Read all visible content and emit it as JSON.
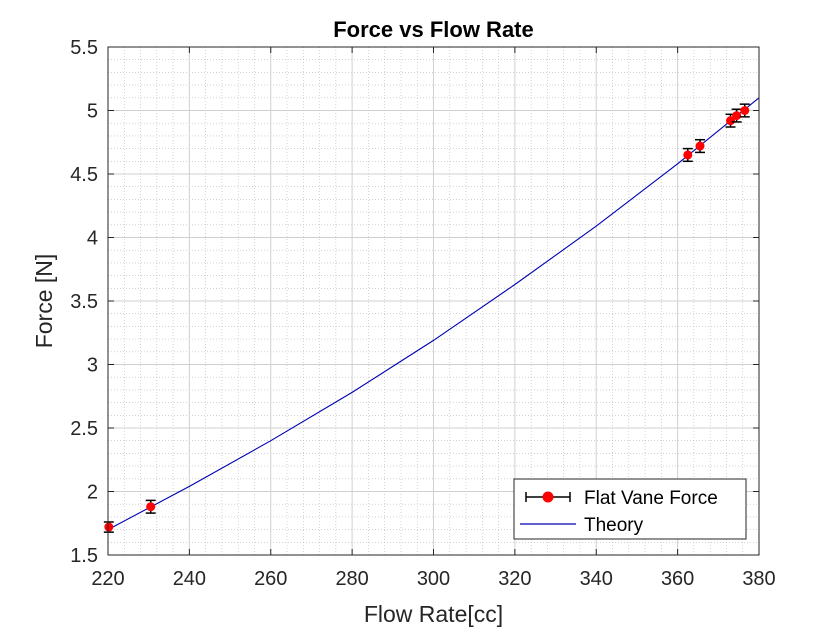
{
  "chart_data": {
    "type": "scatter",
    "title": "Force vs Flow Rate",
    "xlabel": "Flow Rate[cc]",
    "ylabel": "Force [N]",
    "xlim": [
      220,
      380
    ],
    "ylim": [
      1.5,
      5.5
    ],
    "x_ticks": [
      "220",
      "240",
      "260",
      "280",
      "300",
      "320",
      "340",
      "360",
      "380"
    ],
    "y_ticks": [
      "1.5",
      "2",
      "2.5",
      "3",
      "3.5",
      "4",
      "4.5",
      "5",
      "5.5"
    ],
    "grid": true,
    "minor_grid": true,
    "legend_position": "bottom-right",
    "series": [
      {
        "name": "Flat Vane Force",
        "kind": "errorbar",
        "marker_color": "#ff0000",
        "errorbar_color": "#000000",
        "x": [
          220.2,
          230.5,
          362.5,
          365.5,
          373.0,
          374.5,
          376.5
        ],
        "y": [
          1.72,
          1.88,
          4.65,
          4.72,
          4.92,
          4.96,
          5.0
        ],
        "error": [
          0.04,
          0.05,
          0.05,
          0.05,
          0.05,
          0.05,
          0.05
        ]
      },
      {
        "name": "Theory",
        "kind": "line",
        "color": "#0000b3",
        "x": [
          220,
          240,
          260,
          280,
          300,
          320,
          340,
          360,
          380
        ],
        "y": [
          1.7,
          2.04,
          2.4,
          2.78,
          3.19,
          3.63,
          4.09,
          4.58,
          5.1
        ]
      }
    ]
  }
}
